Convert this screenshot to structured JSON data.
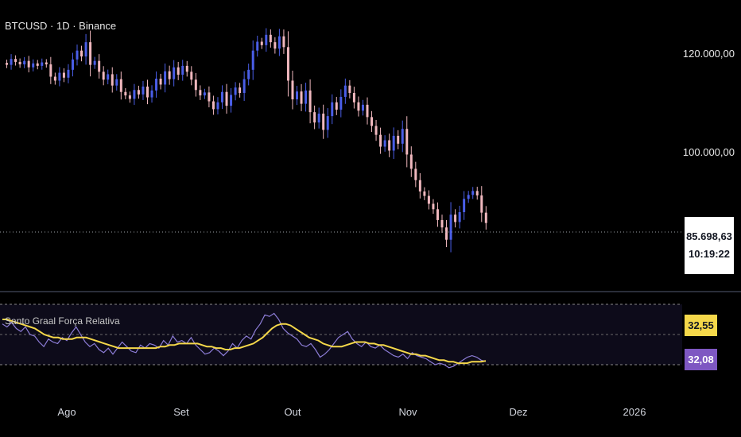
{
  "header": {
    "symbol_title": "BTCUSD · 1D · Binance"
  },
  "price_axis": {
    "labels": [
      "120.000,00",
      "100.000,00"
    ],
    "last_price": "85.698,63",
    "countdown": "10:19:22"
  },
  "indicator": {
    "name": "Santo Graal Força Relativa",
    "value_signal": "32,55",
    "value_main": "32,08",
    "signal_color": "#f5d84a",
    "main_color": "#8c7cd6"
  },
  "time_axis": {
    "labels": [
      "Ago",
      "Set",
      "Out",
      "Nov",
      "Dez",
      "2026"
    ]
  },
  "colors": {
    "up": "#4a5ee8",
    "down": "#f0b8be",
    "background": "#000000"
  },
  "chart_data": [
    {
      "type": "candlestick",
      "title": "BTCUSD · 1D · Binance",
      "x_range": [
        "2025-07-01",
        "2026-01-15"
      ],
      "ylim": [
        70000,
        130000
      ],
      "y_ticks": [
        120000,
        100000
      ],
      "last_close": 85698.63,
      "daily_closes": [
        118200,
        117800,
        119000,
        118400,
        117900,
        118600,
        117300,
        118100,
        117600,
        118300,
        117900,
        115400,
        114600,
        116200,
        115200,
        116800,
        118900,
        120700,
        119500,
        122400,
        117800,
        118600,
        116400,
        114800,
        115900,
        113600,
        114900,
        112300,
        111600,
        110900,
        112700,
        111800,
        113400,
        111200,
        112600,
        115000,
        113800,
        116500,
        114900,
        117300,
        115800,
        117600,
        116400,
        114800,
        112700,
        111600,
        112200,
        110400,
        108800,
        110200,
        112300,
        109500,
        111700,
        113200,
        112100,
        114900,
        116800,
        120700,
        122500,
        121800,
        123900,
        122400,
        121100,
        123600,
        121400,
        114600,
        110800,
        112400,
        109900,
        112600,
        108200,
        106100,
        107900,
        104600,
        107400,
        110200,
        108700,
        111300,
        113600,
        112100,
        110200,
        108500,
        109700,
        107200,
        105400,
        103600,
        101200,
        102500,
        100400,
        103400,
        101800,
        104800,
        99600,
        96700,
        94400,
        92100,
        91200,
        89600,
        88500,
        86300,
        84800,
        82300,
        87400,
        85900,
        87900,
        90600,
        91400,
        92200,
        91300,
        87800,
        85698.63
      ]
    },
    {
      "type": "line",
      "title": "Santo Graal Força Relativa",
      "ylim": [
        0,
        100
      ],
      "series": [
        {
          "name": "",
          "last_value": 32.08,
          "values": [
            57,
            55,
            58,
            54,
            52,
            55,
            50,
            49,
            45,
            42,
            47,
            45,
            44,
            48,
            46,
            51,
            55,
            50,
            45,
            42,
            44,
            40,
            38,
            41,
            37,
            41,
            45,
            42,
            39,
            38,
            43,
            41,
            44,
            43,
            41,
            46,
            43,
            49,
            45,
            46,
            44,
            48,
            43,
            40,
            37,
            38,
            41,
            39,
            36,
            39,
            44,
            41,
            46,
            49,
            47,
            53,
            57,
            63,
            62,
            64,
            60,
            54,
            51,
            49,
            47,
            43,
            42,
            44,
            40,
            35,
            37,
            40,
            44,
            48,
            50,
            52,
            47,
            44,
            42,
            45,
            42,
            41,
            43,
            40,
            38,
            36,
            35,
            37,
            34,
            38,
            36,
            35,
            34,
            32,
            30,
            31,
            30,
            28,
            29,
            31,
            33,
            35,
            36,
            35,
            33,
            32.08
          ]
        },
        {
          "name": "",
          "last_value": 32.55,
          "values": [
            60,
            60,
            59,
            58,
            57,
            56,
            55,
            54,
            52,
            50,
            49,
            48,
            48,
            47,
            47,
            47,
            48,
            48,
            48,
            47,
            46,
            45,
            44,
            43,
            42,
            41,
            41,
            41,
            41,
            41,
            41,
            41,
            41,
            41,
            42,
            42,
            43,
            43,
            44,
            44,
            44,
            44,
            44,
            43,
            42,
            42,
            41,
            41,
            40,
            40,
            41,
            41,
            42,
            43,
            44,
            46,
            48,
            51,
            54,
            56,
            57,
            57,
            56,
            54,
            52,
            50,
            48,
            47,
            46,
            44,
            43,
            42,
            42,
            42,
            43,
            44,
            45,
            45,
            45,
            44,
            44,
            43,
            43,
            42,
            41,
            40,
            39,
            38,
            37,
            37,
            36,
            36,
            35,
            34,
            33,
            33,
            32,
            32,
            31,
            31,
            31,
            32,
            32,
            32,
            32.55
          ]
        }
      ],
      "levels": [
        70,
        50,
        30
      ]
    }
  ]
}
